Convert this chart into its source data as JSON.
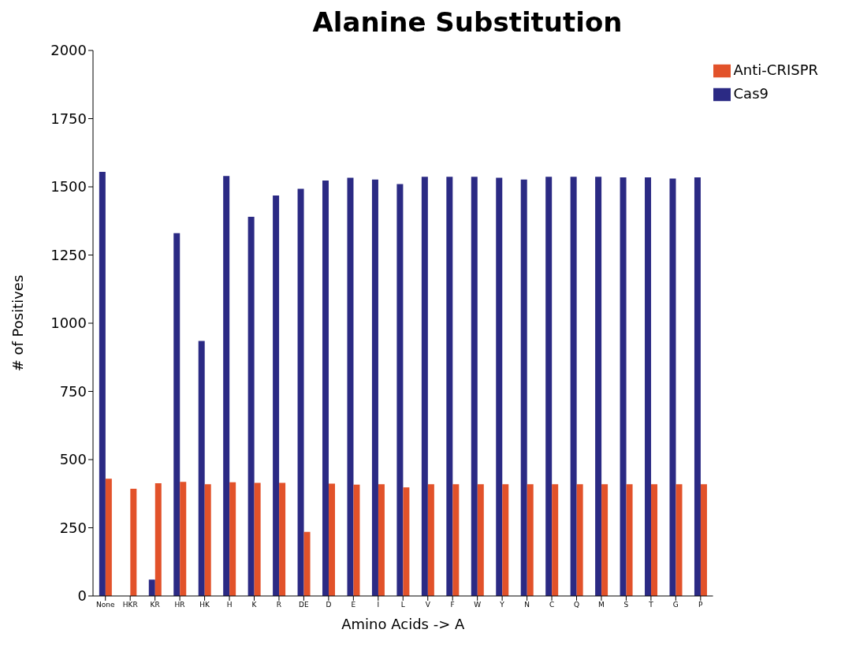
{
  "chart_data": {
    "type": "bar",
    "title": "Alanine Substitution",
    "xlabel": "Amino Acids -> A",
    "ylabel": "# of Positives",
    "categories": [
      "None",
      "HKR",
      "KR",
      "HR",
      "HK",
      "H",
      "K",
      "R",
      "DE",
      "D",
      "E",
      "I",
      "L",
      "V",
      "F",
      "W",
      "Y",
      "N",
      "C",
      "Q",
      "M",
      "S",
      "T",
      "G",
      "P"
    ],
    "series": [
      {
        "name": "Cas9",
        "color": "#2b2a84",
        "values": [
          1555,
          0,
          60,
          1330,
          935,
          1540,
          1390,
          1468,
          1493,
          1523,
          1533,
          1527,
          1510,
          1537,
          1537,
          1537,
          1533,
          1527,
          1537,
          1537,
          1537,
          1535,
          1535,
          1530,
          1535
        ]
      },
      {
        "name": "Anti-CRISPR",
        "color": "#e2522a",
        "values": [
          430,
          393,
          413,
          418,
          410,
          417,
          415,
          415,
          235,
          412,
          408,
          410,
          398,
          410,
          410,
          410,
          410,
          410,
          410,
          410,
          410,
          410,
          410,
          410,
          410
        ]
      }
    ],
    "ylim": [
      0,
      2000
    ],
    "yticks": [
      0,
      250,
      500,
      750,
      1000,
      1250,
      1500,
      1750,
      2000
    ],
    "grid": false,
    "legend": "top right"
  }
}
